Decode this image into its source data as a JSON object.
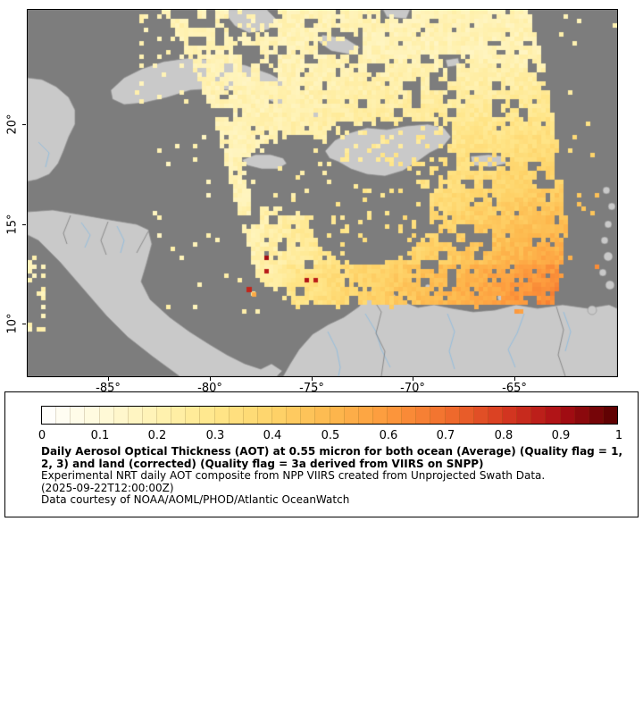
{
  "map": {
    "x_tick_labels": [
      "-85°",
      "-80°",
      "-75°",
      "-70°",
      "-65°"
    ],
    "y_tick_labels": [
      "20°",
      "15°",
      "10°"
    ],
    "colors": {
      "ocean": "#7d7d7d",
      "land": "#c9c9c9",
      "river": "#94bede",
      "border": "#7a7a7a",
      "coast": "#8d8d8d",
      "frame": "#000000"
    }
  },
  "colorbar": {
    "tick_labels": [
      "0",
      "0.1",
      "0.2",
      "0.3",
      "0.4",
      "0.5",
      "0.6",
      "0.7",
      "0.8",
      "0.9",
      "1"
    ],
    "stops": [
      "#ffffff",
      "#fffadb",
      "#fff2b3",
      "#ffe68a",
      "#fed46a",
      "#fdb94e",
      "#fd9a3d",
      "#f1702e",
      "#d83b21",
      "#ab0e15",
      "#560000"
    ]
  },
  "legend": {
    "title_line1": "Daily Aerosol Optical Thickness (AOT) at 0.55 micron for both ocean (Average) (Quality flag = 1,",
    "title_line2": "2, 3) and land (corrected) (Quality flag = 3a derived from VIIRS on SNPP)",
    "description": "Experimental NRT daily AOT composite from NPP VIIRS created from Unprojected Swath Data.",
    "timestamp": "(2025-09-22T12:00:00Z)",
    "credit": "Data courtesy of NOAA/AOML/PHOD/Atlantic OceanWatch"
  }
}
